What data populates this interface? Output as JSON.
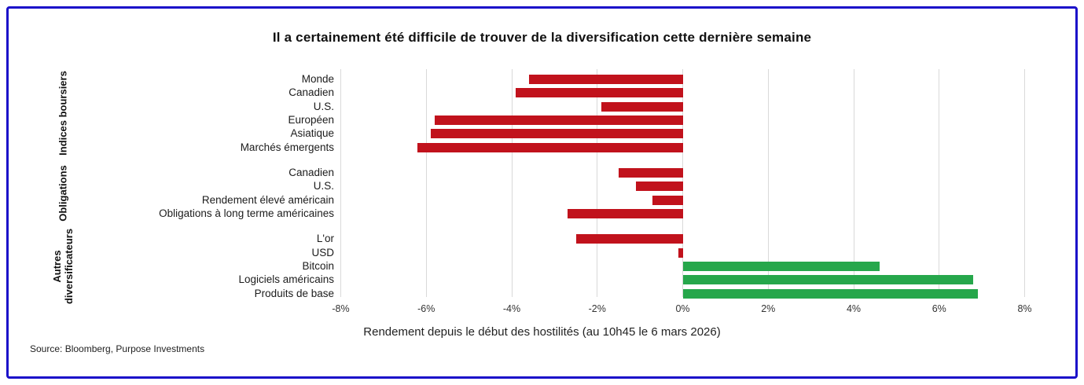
{
  "title": "Il a certainement été difficile de trouver de la diversification cette dernière semaine",
  "axis": {
    "title": "Rendement depuis le début des hostilités (au 10h45 le 6 mars 2026)"
  },
  "source": "Source: Bloomberg, Purpose Investments",
  "colors": {
    "negative": "#c1121c",
    "positive": "#26a74b",
    "grid": "#d9d9d9",
    "frame_border": "#1b0fc9"
  },
  "chart_data": {
    "type": "bar",
    "orientation": "horizontal",
    "title": "Il a certainement été difficile de trouver de la diversification cette dernière semaine",
    "xlabel": "Rendement depuis le début des hostilités (au 10h45 le 6 mars 2026)",
    "unit": "%",
    "xlim": [
      -8,
      8
    ],
    "xticks": [
      -8,
      -6,
      -4,
      -2,
      0,
      2,
      4,
      6,
      8
    ],
    "xtick_labels": [
      "-8%",
      "-6%",
      "-4%",
      "-2%",
      "0%",
      "2%",
      "4%",
      "6%",
      "8%"
    ],
    "grid": true,
    "legend": null,
    "groups": [
      {
        "label_lines": [
          "Indices boursiers"
        ],
        "items": [
          {
            "label": "Monde",
            "value": -3.6
          },
          {
            "label": "Canadien",
            "value": -3.9
          },
          {
            "label": "U.S.",
            "value": -1.9
          },
          {
            "label": "Européen",
            "value": -5.8
          },
          {
            "label": "Asiatique",
            "value": -5.9
          },
          {
            "label": "Marchés émergents",
            "value": -6.2
          }
        ]
      },
      {
        "label_lines": [
          "Obligations"
        ],
        "items": [
          {
            "label": "Canadien",
            "value": -1.5
          },
          {
            "label": "U.S.",
            "value": -1.1
          },
          {
            "label": "Rendement élevé américain",
            "value": -0.7
          },
          {
            "label": "Obligations à long terme américaines",
            "value": -2.7
          }
        ]
      },
      {
        "label_lines": [
          "Autres",
          "diversificateurs"
        ],
        "items": [
          {
            "label": "L'or",
            "value": -2.5
          },
          {
            "label": "USD",
            "value": -0.1
          },
          {
            "label": "Bitcoin",
            "value": 4.6
          },
          {
            "label": "Logiciels américains",
            "value": 6.8
          },
          {
            "label": "Produits de base",
            "value": 6.9
          }
        ]
      }
    ]
  }
}
